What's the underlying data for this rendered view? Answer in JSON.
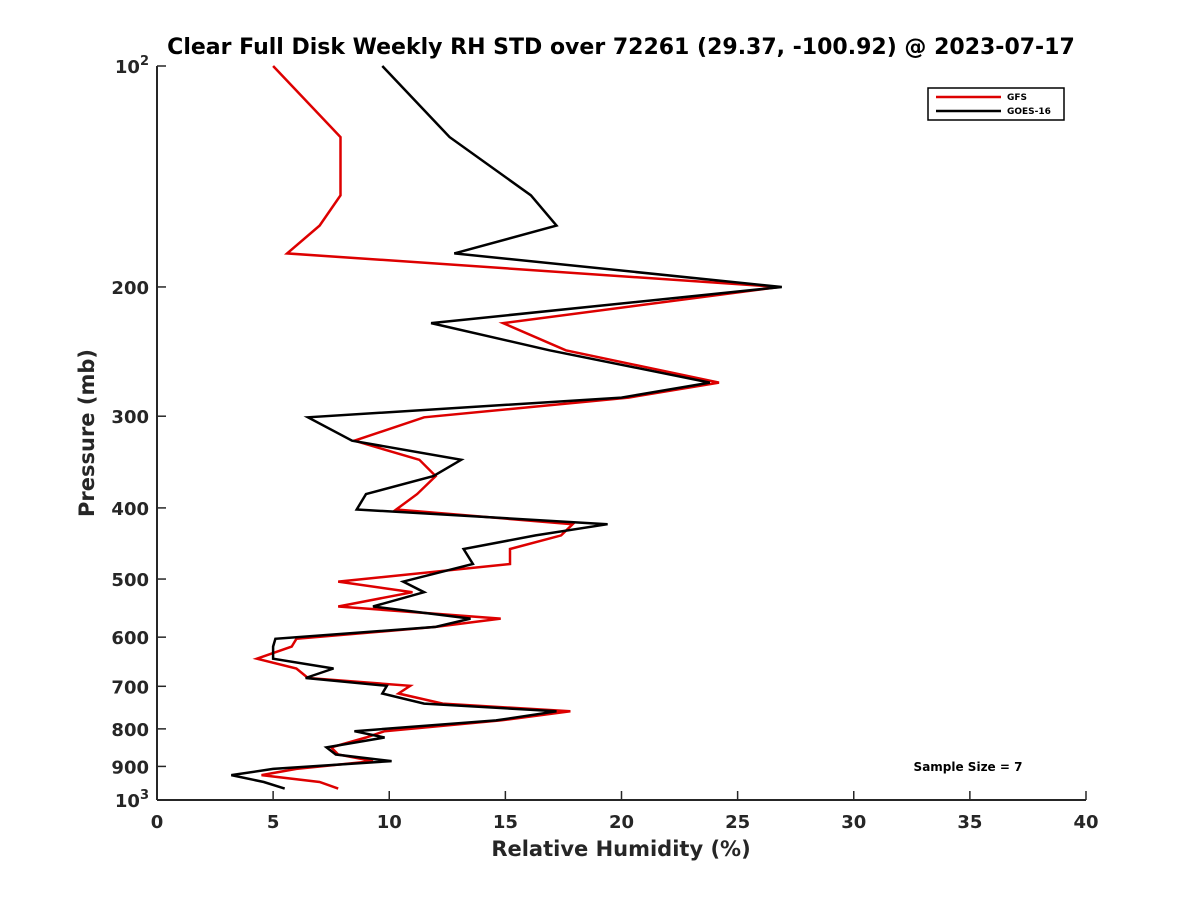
{
  "chart_data": {
    "type": "line",
    "title": "Clear Full Disk Weekly RH STD over 72261 (29.37, -100.92) @ 2023-07-17",
    "xlabel": "Relative Humidity (%)",
    "ylabel": "Pressure (mb)",
    "xlim": [
      0,
      40
    ],
    "ylim": [
      100,
      1000
    ],
    "y_scale": "log",
    "y_reversed": true,
    "x_ticks": [
      0,
      5,
      10,
      15,
      20,
      25,
      30,
      35,
      40
    ],
    "y_ticks": [
      {
        "value": 100,
        "label": "10",
        "sup": "2"
      },
      {
        "value": 200,
        "label": "200",
        "sup": ""
      },
      {
        "value": 300,
        "label": "300",
        "sup": ""
      },
      {
        "value": 400,
        "label": "400",
        "sup": ""
      },
      {
        "value": 500,
        "label": "500",
        "sup": ""
      },
      {
        "value": 600,
        "label": "600",
        "sup": ""
      },
      {
        "value": 700,
        "label": "700",
        "sup": ""
      },
      {
        "value": 800,
        "label": "800",
        "sup": ""
      },
      {
        "value": 900,
        "label": "900",
        "sup": ""
      },
      {
        "value": 1000,
        "label": "10",
        "sup": "3"
      }
    ],
    "grid": false,
    "legend_position": "top-right",
    "annotation": "Sample Size = 7",
    "series": [
      {
        "name": "GFS",
        "color": "#dd0000",
        "points": [
          [
            5.0,
            100
          ],
          [
            7.9,
            125
          ],
          [
            7.9,
            150
          ],
          [
            7.0,
            165
          ],
          [
            5.6,
            180
          ],
          [
            26.8,
            200
          ],
          [
            14.9,
            224
          ],
          [
            17.6,
            244
          ],
          [
            24.2,
            270
          ],
          [
            20.3,
            283
          ],
          [
            11.5,
            301
          ],
          [
            8.5,
            324
          ],
          [
            11.3,
            344
          ],
          [
            12.0,
            362
          ],
          [
            11.2,
            383
          ],
          [
            10.3,
            402
          ],
          [
            17.9,
            421
          ],
          [
            17.4,
            436
          ],
          [
            15.2,
            455
          ],
          [
            15.2,
            477
          ],
          [
            7.8,
            504
          ],
          [
            11.0,
            521
          ],
          [
            7.8,
            545
          ],
          [
            14.8,
            566
          ],
          [
            12.0,
            581
          ],
          [
            6.0,
            603
          ],
          [
            5.8,
            618
          ],
          [
            4.3,
            642
          ],
          [
            6.0,
            662
          ],
          [
            6.5,
            682
          ],
          [
            10.9,
            699
          ],
          [
            10.4,
            716
          ],
          [
            12.3,
            739
          ],
          [
            17.8,
            757
          ],
          [
            14.8,
            779
          ],
          [
            9.8,
            806
          ],
          [
            9.0,
            822
          ],
          [
            7.5,
            848
          ],
          [
            7.8,
            867
          ],
          [
            9.3,
            885
          ],
          [
            6.0,
            907
          ],
          [
            4.5,
            925
          ],
          [
            7.0,
            945
          ],
          [
            7.8,
            965
          ]
        ]
      },
      {
        "name": "GOES-16",
        "color": "#000000",
        "points": [
          [
            9.7,
            100
          ],
          [
            12.6,
            125
          ],
          [
            16.1,
            150
          ],
          [
            17.2,
            165
          ],
          [
            12.8,
            180
          ],
          [
            26.9,
            200
          ],
          [
            11.8,
            224
          ],
          [
            16.9,
            244
          ],
          [
            23.8,
            270
          ],
          [
            20.0,
            283
          ],
          [
            6.5,
            301
          ],
          [
            8.4,
            324
          ],
          [
            13.1,
            344
          ],
          [
            11.9,
            362
          ],
          [
            9.0,
            383
          ],
          [
            8.6,
            402
          ],
          [
            19.4,
            421
          ],
          [
            16.3,
            436
          ],
          [
            13.2,
            455
          ],
          [
            13.6,
            477
          ],
          [
            10.6,
            504
          ],
          [
            11.5,
            521
          ],
          [
            9.3,
            545
          ],
          [
            13.5,
            566
          ],
          [
            12.0,
            581
          ],
          [
            5.1,
            603
          ],
          [
            5.0,
            618
          ],
          [
            5.0,
            642
          ],
          [
            7.6,
            662
          ],
          [
            6.4,
            682
          ],
          [
            9.9,
            699
          ],
          [
            9.7,
            716
          ],
          [
            11.5,
            739
          ],
          [
            17.2,
            757
          ],
          [
            14.6,
            779
          ],
          [
            8.5,
            806
          ],
          [
            9.8,
            822
          ],
          [
            7.3,
            848
          ],
          [
            7.7,
            867
          ],
          [
            10.1,
            885
          ],
          [
            5.0,
            907
          ],
          [
            3.2,
            925
          ],
          [
            4.6,
            945
          ],
          [
            5.5,
            965
          ]
        ]
      }
    ]
  }
}
